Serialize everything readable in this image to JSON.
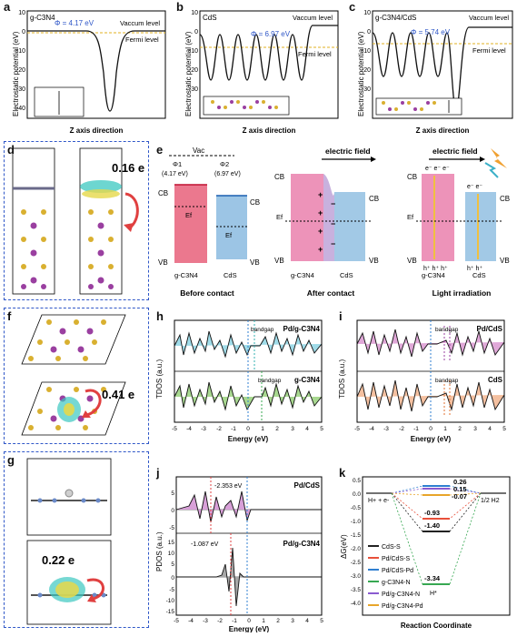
{
  "labels": {
    "a": "a",
    "b": "b",
    "c": "c",
    "d": "d",
    "e": "e",
    "f": "f",
    "g": "g",
    "h": "h",
    "i": "i",
    "j": "j",
    "k": "k"
  },
  "ylabel_ep": "Electrostatic potential (eV)",
  "xlabel_z": "Z axis direction",
  "vac": "Vaccum level",
  "fermi": "Fermi level",
  "a": {
    "title": "g-C3N4",
    "phi": "Φ = 4.17 eV"
  },
  "b": {
    "title": "CdS",
    "phi": "Φ = 6.97 eV"
  },
  "c": {
    "title": "g-C3N4/CdS",
    "phi": "Φ = 5.74 eV"
  },
  "ep_ticks": [
    "10",
    "0",
    "-10",
    "-20",
    "-30",
    "-40"
  ],
  "d": {
    "charge": "0.16 e"
  },
  "f": {
    "charge": "0.41 e"
  },
  "g": {
    "charge": "0.22 e"
  },
  "e": {
    "vac": "Vac",
    "phi1": "Φ1",
    "phi1v": "(4.17 eV)",
    "phi2": "Φ2",
    "phi2v": "(6.97 eV)",
    "cb": "CB",
    "vb": "VB",
    "ef": "Ef",
    "gcn": "g-C3N4",
    "cds": "CdS",
    "before": "Before contact",
    "after": "After contact",
    "light": "Light irradiation",
    "efield": "electric field"
  },
  "h": {
    "ylabel": "TDOS (a.u.)",
    "top": "Pd/g-C3N4",
    "bot": "g-C3N4",
    "bandgap": "bandgap",
    "xlabel": "Energy (eV)"
  },
  "i": {
    "ylabel": "TDOS (a.u.)",
    "top": "Pd/CdS",
    "bot": "CdS",
    "bandgap": "bandgap",
    "xlabel": "Energy (eV)"
  },
  "energy_ticks": [
    "-5",
    "-4",
    "-3",
    "-2",
    "-1",
    "0",
    "1",
    "2",
    "3",
    "4",
    "5"
  ],
  "tdos_ticks": [
    "10",
    "0",
    "-10"
  ],
  "j": {
    "ylabel": "PDOS (a.u.)",
    "top": "Pd/CdS",
    "bot": "Pd/g-C3N4",
    "v1": "-2.353 eV",
    "v2": "-1.087 eV",
    "xlabel": "Energy (eV)",
    "ticks_top": [
      "5",
      "0",
      "-5"
    ],
    "ticks_bot": [
      "15",
      "10",
      "5",
      "0",
      "-5",
      "-10",
      "-15"
    ]
  },
  "k": {
    "ylabel": "ΔG(eV)",
    "xlabel": "Reaction Coordinate",
    "h_start": "H+ + e-",
    "h_end": "1/2 H2",
    "h_mid": "H*",
    "ticks": [
      "0.5",
      "0.0",
      "-0.5",
      "-1.0",
      "-1.5",
      "-2.0",
      "-2.5",
      "-3.0",
      "-3.5",
      "-4.0"
    ],
    "values": [
      "0.26",
      "0.15",
      "-0.07",
      "-0.93",
      "-1.40",
      "-3.34"
    ],
    "legend": [
      {
        "name": "CdS-S",
        "color": "#222222"
      },
      {
        "name": "Pd/CdS-S",
        "color": "#e8503a"
      },
      {
        "name": "Pd/CdS-Pd",
        "color": "#2f7fd0"
      },
      {
        "name": "g-C3N4-N",
        "color": "#37a852"
      },
      {
        "name": "Pd/g-C3N4-N",
        "color": "#8a5bd0"
      },
      {
        "name": "Pd/g-C3N4-Pd",
        "color": "#e8a52a"
      }
    ]
  }
}
